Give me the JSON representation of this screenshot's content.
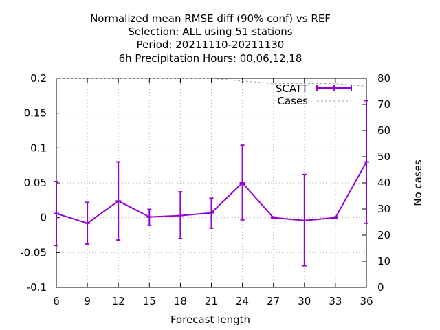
{
  "chart_data": {
    "type": "line",
    "title_lines": [
      "Normalized mean RMSE diff (90% conf) vs REF",
      "Selection: ALL using    51 stations",
      "Period: 20211110-20211130",
      "6h Precipitation   Hours:  00,06,12,18"
    ],
    "xlabel": "Forecast length",
    "ylabel": "",
    "y2label": "No cases",
    "x_ticks": [
      6,
      9,
      12,
      15,
      18,
      21,
      24,
      27,
      30,
      33,
      36
    ],
    "y_ticks": [
      "0.2",
      "0.15",
      "0.1",
      "0.05",
      "0",
      "-0.05",
      "-0.1"
    ],
    "y2_ticks": [
      "80",
      "70",
      "60",
      "50",
      "40",
      "30",
      "20",
      "10",
      "0"
    ],
    "xlim": [
      6,
      36
    ],
    "ylim": [
      -0.1,
      0.2
    ],
    "y2lim": [
      0,
      80
    ],
    "grid": true,
    "legend_position": "top-right",
    "series": [
      {
        "name": "SCATT",
        "color": "#9400d3",
        "x": [
          6,
          9,
          12,
          15,
          18,
          21,
          24,
          27,
          30,
          33,
          36
        ],
        "y": [
          0.006,
          -0.008,
          0.024,
          0.001,
          0.003,
          0.007,
          0.05,
          0.0,
          -0.004,
          0.0,
          0.08
        ],
        "err_low": [
          -0.04,
          -0.038,
          -0.032,
          -0.011,
          -0.03,
          -0.015,
          -0.003,
          -0.001,
          -0.069,
          -0.001,
          -0.008
        ],
        "err_high": [
          0.052,
          0.022,
          0.08,
          0.012,
          0.037,
          0.028,
          0.104,
          0.001,
          0.062,
          0.001,
          0.168
        ]
      },
      {
        "name": "Cases",
        "color": "#a0a0a0",
        "axis": "y2",
        "x": [
          6,
          9,
          12,
          15,
          18,
          21,
          24,
          27,
          30,
          33,
          36
        ],
        "y": [
          80,
          80,
          80,
          80,
          80,
          80,
          79,
          78,
          78,
          78,
          77
        ]
      }
    ]
  }
}
